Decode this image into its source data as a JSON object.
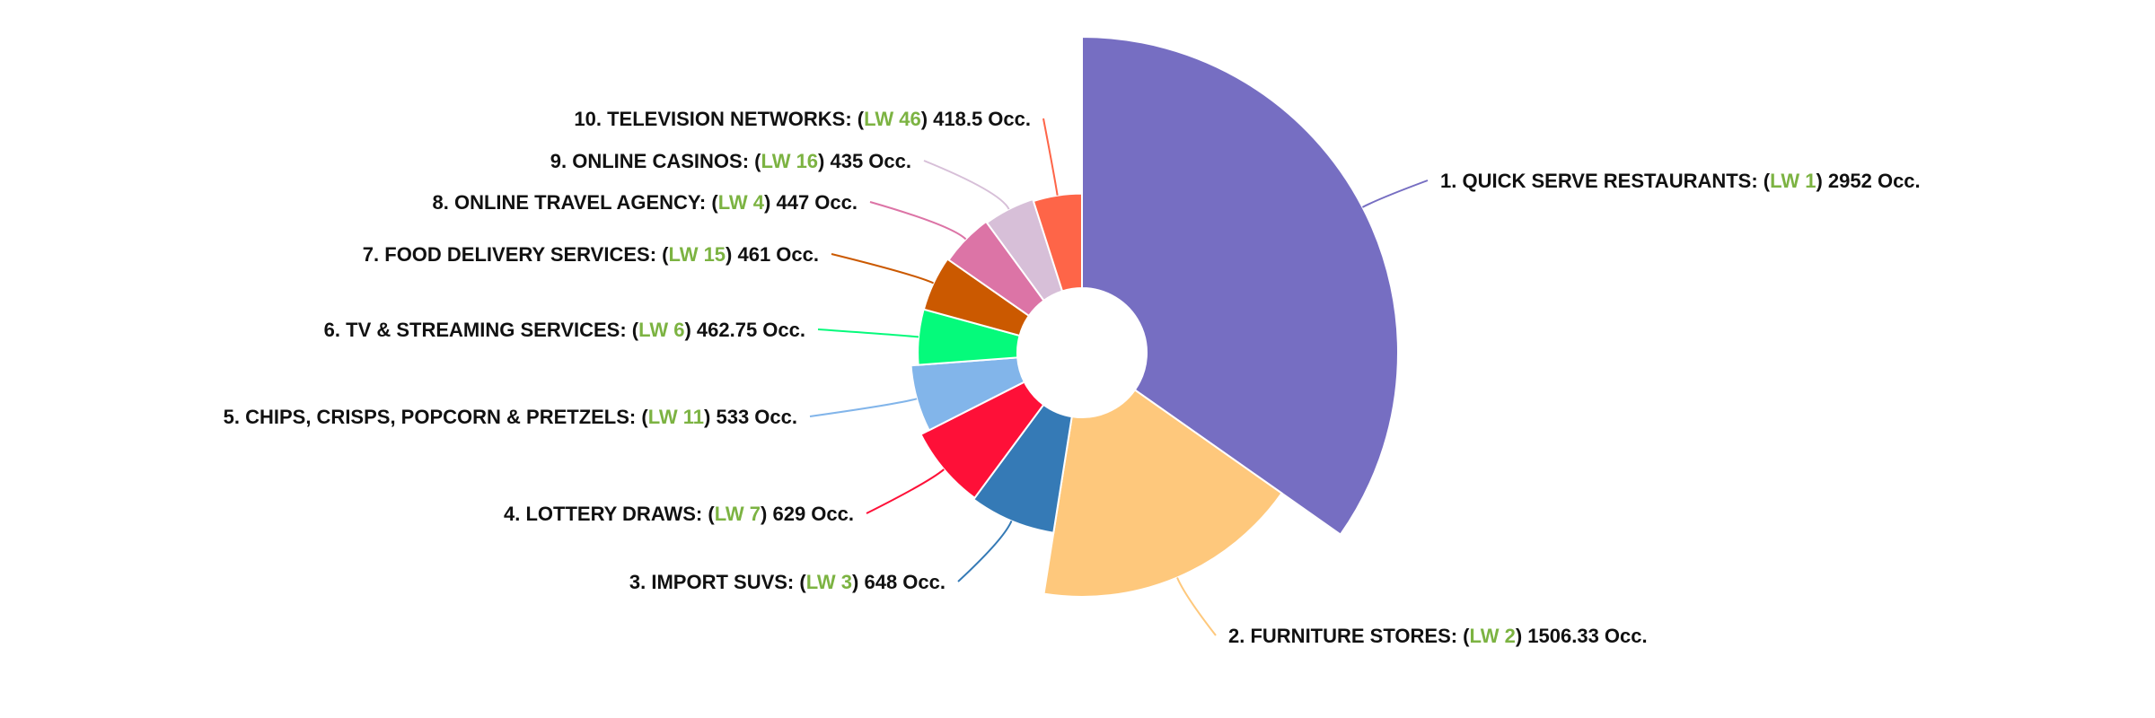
{
  "chart_data": {
    "type": "pie",
    "variant": "variable-radius donut (nightingale)",
    "value_unit": "Occ.",
    "start_angle_deg": 0,
    "max_value": 2952,
    "slices": [
      {
        "rank": "1.",
        "name": "QUICK SERVE RESTAURANTS:",
        "lw": "LW 1",
        "value": 2952,
        "value_label": "2952 Occ.",
        "color": "#766ec2",
        "label_side": "right"
      },
      {
        "rank": "2.",
        "name": "FURNITURE STORES:",
        "lw": "LW 2",
        "value": 1506.33,
        "value_label": "1506.33 Occ.",
        "color": "#fec87c",
        "label_side": "right"
      },
      {
        "rank": "3.",
        "name": "IMPORT SUVS:",
        "lw": "LW 3",
        "value": 648,
        "value_label": "648 Occ.",
        "color": "#357ab6",
        "label_side": "left"
      },
      {
        "rank": "4.",
        "name": "LOTTERY DRAWS:",
        "lw": "LW 7",
        "value": 629,
        "value_label": "629 Occ.",
        "color": "#fe1038",
        "label_side": "left"
      },
      {
        "rank": "5.",
        "name": "CHIPS, CRISPS, POPCORN & PRETZELS:",
        "lw": "LW 11",
        "value": 533,
        "value_label": "533 Occ.",
        "color": "#82b5ea",
        "label_side": "left"
      },
      {
        "rank": "6.",
        "name": "TV & STREAMING SERVICES:",
        "lw": "LW 6",
        "value": 462.75,
        "value_label": "462.75 Occ.",
        "color": "#05fa7b",
        "label_side": "left"
      },
      {
        "rank": "7.",
        "name": "FOOD DELIVERY SERVICES:",
        "lw": "LW 15",
        "value": 461,
        "value_label": "461 Occ.",
        "color": "#cb5900",
        "label_side": "left"
      },
      {
        "rank": "8.",
        "name": "ONLINE TRAVEL AGENCY:",
        "lw": "LW 4",
        "value": 447,
        "value_label": "447 Occ.",
        "color": "#dc74a6",
        "label_side": "left"
      },
      {
        "rank": "9.",
        "name": "ONLINE CASINOS:",
        "lw": "LW 16",
        "value": 435,
        "value_label": "435 Occ.",
        "color": "#d7bfd8",
        "label_side": "left"
      },
      {
        "rank": "10.",
        "name": "TELEVISION NETWORKS:",
        "lw": "LW 46",
        "value": 418.5,
        "value_label": "418.5 Occ.",
        "color": "#fe6548",
        "label_side": "left"
      }
    ],
    "lw_color": "#7cb342",
    "label_color": "#111111",
    "legend": "none"
  }
}
